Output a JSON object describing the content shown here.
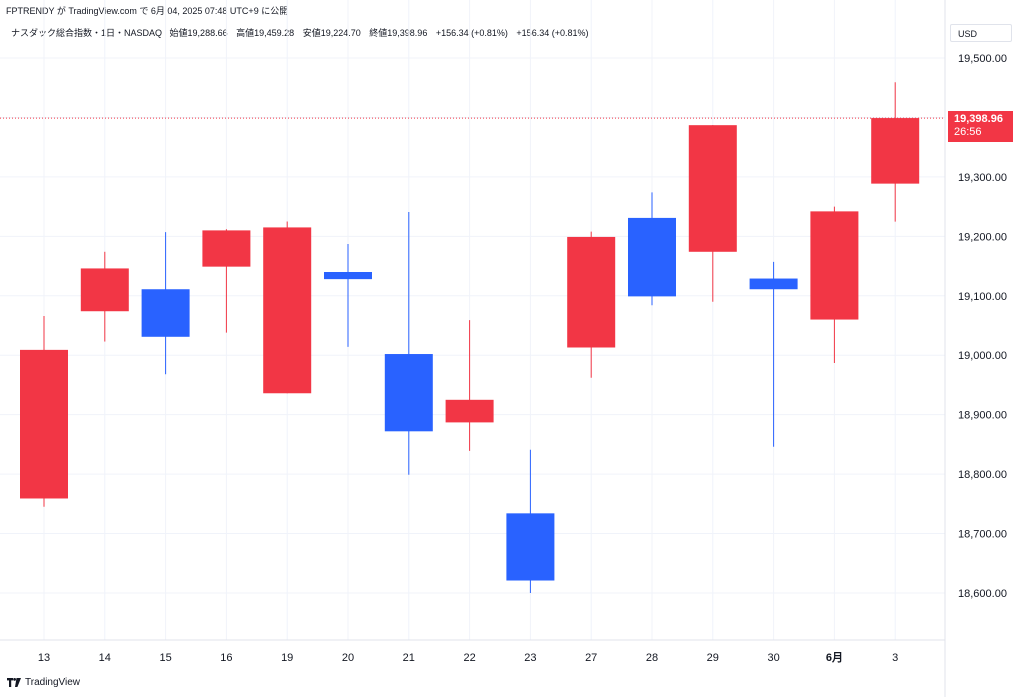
{
  "header": {
    "caption": "FPTRENDY が TradingView.com で 6月 04, 2025 07:48 UTC+9 に公開"
  },
  "legend": {
    "symbol": "ナスダック総合指数・1日・NASDAQ",
    "open_label": "始値",
    "open": "19,288.66",
    "high_label": "高値",
    "high": "19,459.28",
    "low_label": "安値",
    "low": "19,224.70",
    "close_label": "終値",
    "close": "19,398.96",
    "change1": "+156.34 (+0.81%)",
    "change2": "+156.34 (+0.81%)"
  },
  "toolbar": {
    "currency": "USD"
  },
  "last_price": {
    "price": "19,398.96",
    "countdown": "26:56"
  },
  "footer": {
    "brand": "TradingView"
  },
  "colors": {
    "up": "#f23645",
    "down": "#2962ff",
    "grid": "#f0f3fa",
    "axis": "#e0e3eb"
  },
  "chart_data": {
    "type": "candlestick",
    "title": "ナスダック総合指数・1日・NASDAQ",
    "x_labels": [
      "13",
      "14",
      "15",
      "16",
      "19",
      "20",
      "21",
      "22",
      "23",
      "27",
      "28",
      "29",
      "30",
      "6月",
      "3"
    ],
    "bold_x_labels": [
      "6月"
    ],
    "candles": [
      {
        "open": 18759,
        "high": 19066,
        "low": 18745,
        "close": 19009
      },
      {
        "open": 19074,
        "high": 19174,
        "low": 19023,
        "close": 19146
      },
      {
        "open": 19111,
        "high": 19207,
        "low": 18968,
        "close": 19031
      },
      {
        "open": 19149,
        "high": 19212,
        "low": 19038,
        "close": 19210
      },
      {
        "open": 18936,
        "high": 19225,
        "low": 18936,
        "close": 19215
      },
      {
        "open": 19140,
        "high": 19187,
        "low": 19014,
        "close": 19128
      },
      {
        "open": 19002,
        "high": 19241,
        "low": 18799,
        "close": 18872
      },
      {
        "open": 18887,
        "high": 19059,
        "low": 18839,
        "close": 18925
      },
      {
        "open": 18734,
        "high": 18841,
        "low": 18600,
        "close": 18621
      },
      {
        "open": 19013,
        "high": 19208,
        "low": 18962,
        "close": 19199
      },
      {
        "open": 19231,
        "high": 19274,
        "low": 19084,
        "close": 19099
      },
      {
        "open": 19174,
        "high": 19387,
        "low": 19090,
        "close": 19387
      },
      {
        "open": 19129,
        "high": 19157,
        "low": 18846,
        "close": 19111
      },
      {
        "open": 19060,
        "high": 19250,
        "low": 18987,
        "close": 19242
      },
      {
        "open": 19288.66,
        "high": 19459.28,
        "low": 19224.7,
        "close": 19398.96
      }
    ],
    "y_ticks": [
      "19,500.00",
      "19,300.00",
      "19,200.00",
      "19,100.00",
      "19,000.00",
      "18,900.00",
      "18,800.00",
      "18,700.00",
      "18,600.00"
    ],
    "y_tick_values": [
      19500,
      19300,
      19200,
      19100,
      19000,
      18900,
      18800,
      18700,
      18600
    ],
    "grid_values": [
      19500,
      19400,
      19300,
      19200,
      19100,
      19000,
      18900,
      18800,
      18700,
      18600
    ],
    "ylim": [
      18590,
      19550
    ],
    "last_close": 19398.96,
    "grid": true
  }
}
